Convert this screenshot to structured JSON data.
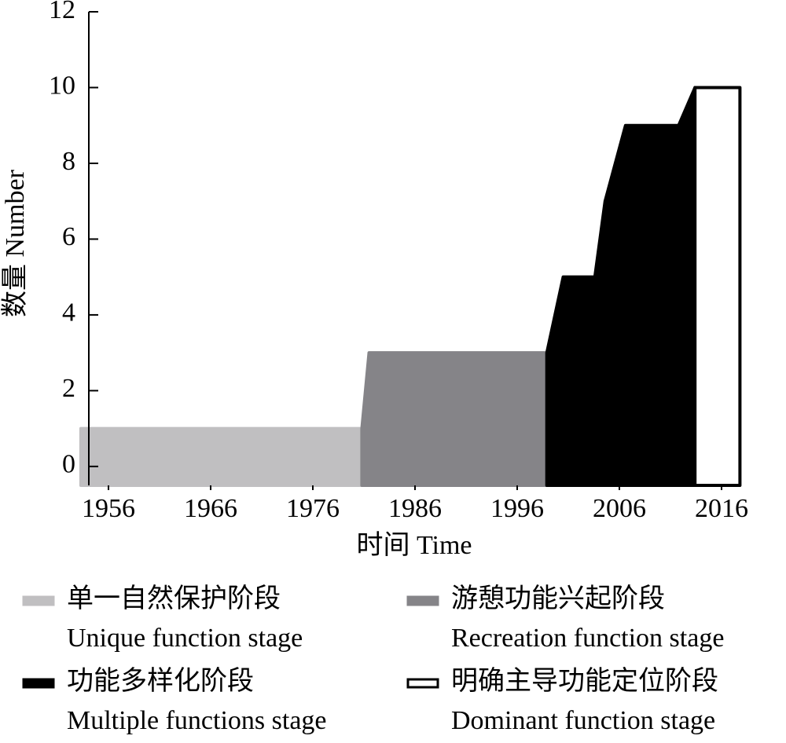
{
  "chart_data": {
    "type": "area",
    "ylabel": "数量 Number",
    "xlabel": "时间 Time",
    "xlim": [
      1953,
      2019
    ],
    "ylim": [
      -0.5,
      12
    ],
    "xticks": [
      1956,
      1966,
      1976,
      1986,
      1996,
      2006,
      2016
    ],
    "yticks": [
      0,
      2,
      4,
      6,
      8,
      10,
      12
    ],
    "series": [
      {
        "name": "单一自然保护阶段",
        "name_en": "Unique function stage",
        "color": "#c0bfc1",
        "edge_color": "#c0bfc1",
        "x": [
          1953.3,
          1980.8
        ],
        "values": [
          1,
          1
        ]
      },
      {
        "name": "游憩功能兴起阶段",
        "name_en": "Recreation function stage",
        "color": "#858488",
        "edge_color": "#858488",
        "x": [
          1980.8,
          1981.5,
          1998.9
        ],
        "values": [
          1,
          3,
          3
        ]
      },
      {
        "name": "功能多样化阶段",
        "name_en": "Multiple functions stage",
        "color": "#000000",
        "edge_color": "#000000",
        "x": [
          1998.9,
          2000.5,
          2003.6,
          2004.6,
          2006.6,
          2011.8,
          2013.4
        ],
        "values": [
          3,
          5,
          5,
          7,
          9,
          9,
          10
        ]
      },
      {
        "name": "明确主导功能定位阶段",
        "name_en": "Dominant function stage",
        "color": "#ffffff",
        "edge_color": "#000000",
        "x": [
          2013.4,
          2017.8
        ],
        "values": [
          10,
          10
        ]
      }
    ]
  }
}
